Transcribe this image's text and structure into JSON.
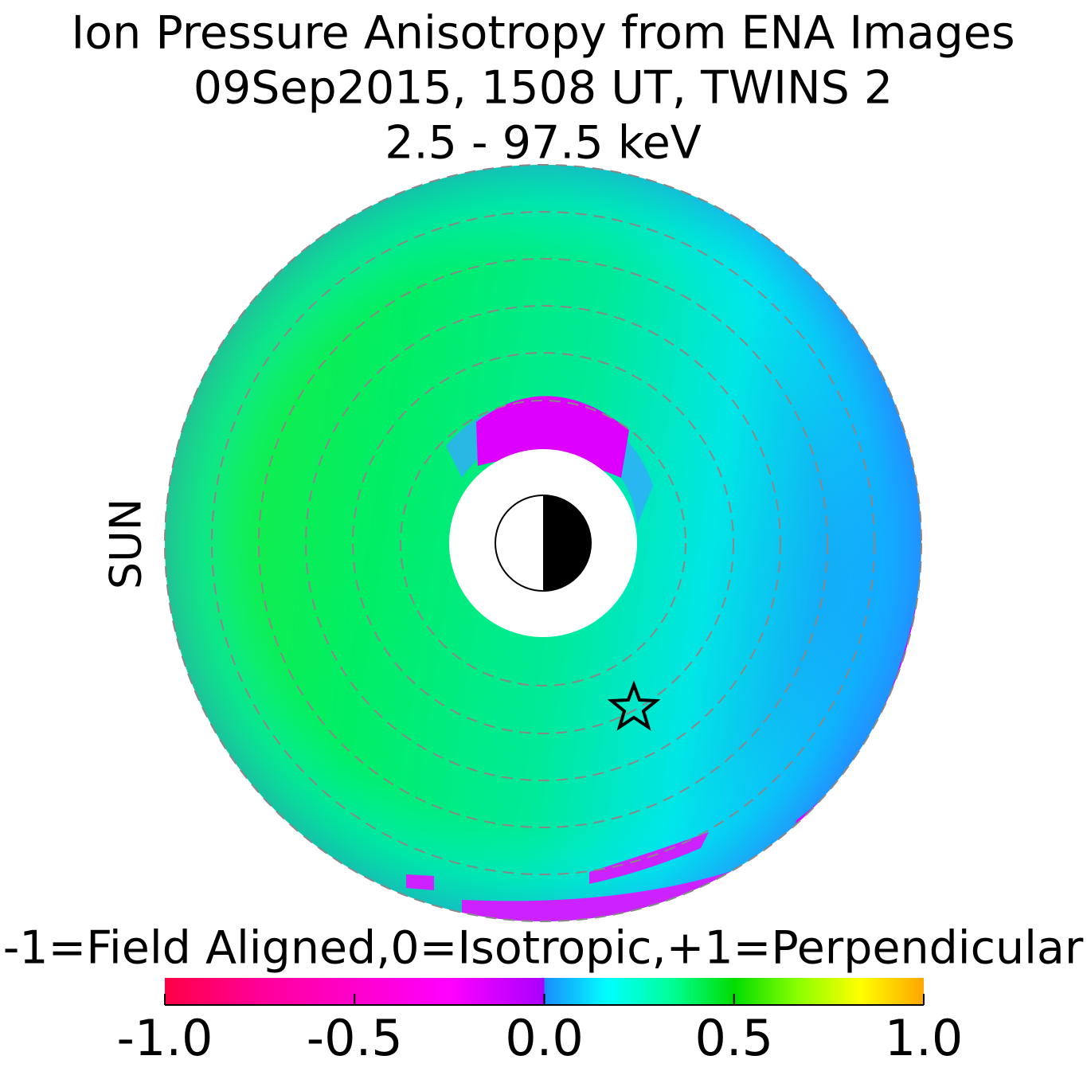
{
  "chart_data": {
    "type": "polar-map",
    "title_lines": [
      "Ion Pressure Anisotropy from  ENA Images",
      "09Sep2015, 1508 UT,  TWINS 2",
      "2.5 - 97.5 keV"
    ],
    "sun_label": "SUN",
    "sun_color": "#f5a000",
    "colorbar_label": "-1=Field Aligned,0=Isotropic,+1=Perpendicular",
    "xlim": [
      -1,
      1
    ],
    "xticks": [
      {
        "value": -1,
        "label": "-1.0"
      },
      {
        "value": -0.5,
        "label": "-0.5"
      },
      {
        "value": 0,
        "label": "0.0"
      },
      0.5,
      {
        "value": 1,
        "label": "1.0"
      }
    ],
    "negative_colors": [
      "#ff0044",
      "#ff0099",
      "#ff00cc",
      "#ff00ff",
      "#aa00ff"
    ],
    "positive_colors": [
      "#1a8cff",
      "#00ffff",
      "#00ff99",
      "#00dd00",
      "#88ff00",
      "#ffff00",
      "#ffa500"
    ]
  }
}
